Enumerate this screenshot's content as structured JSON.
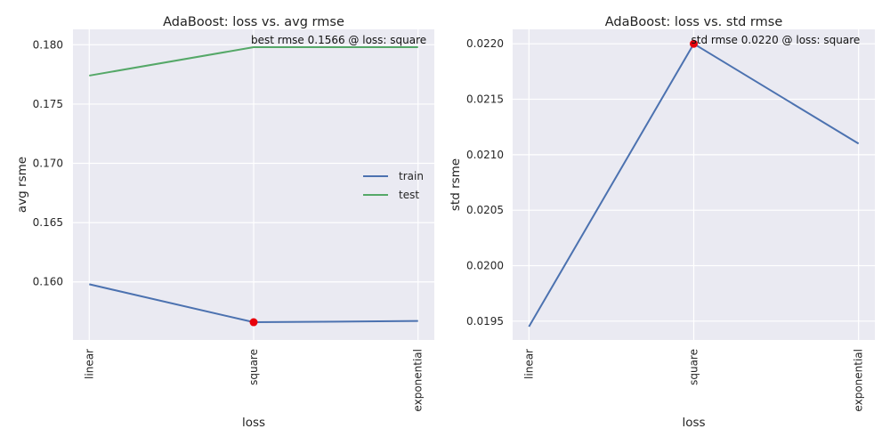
{
  "chart_data": [
    {
      "type": "line",
      "title": "AdaBoost: loss vs. avg rmse",
      "xlabel": "loss",
      "ylabel": "avg rsme",
      "categories": [
        "linear",
        "square",
        "exponential"
      ],
      "series": [
        {
          "name": "train",
          "color": "#4c72b0",
          "values": [
            0.1598,
            0.1566,
            0.1567
          ]
        },
        {
          "name": "test",
          "color": "#55a868",
          "values": [
            0.1774,
            0.1798,
            0.1798
          ]
        }
      ],
      "highlight": {
        "category": "square",
        "value": 0.1566,
        "color": "#e8000b",
        "label": "best rmse 0.1566 @ loss: square"
      },
      "ylim": [
        0.1551,
        0.1813
      ],
      "yticks": [
        0.16,
        0.165,
        0.17,
        0.175,
        0.18
      ],
      "ytick_labels": [
        "0.160",
        "0.165",
        "0.170",
        "0.175",
        "0.180"
      ],
      "legend": "center-right",
      "grid": true
    },
    {
      "type": "line",
      "title": "AdaBoost: loss vs. std rmse",
      "xlabel": "loss",
      "ylabel": "std rsme",
      "categories": [
        "linear",
        "square",
        "exponential"
      ],
      "series": [
        {
          "color": "#4c72b0",
          "values": [
            0.01945,
            0.022,
            0.0211
          ]
        }
      ],
      "highlight": {
        "category": "square",
        "value": 0.022,
        "color": "#e8000b",
        "label": "std rmse 0.0220 @ loss: square"
      },
      "ylim": [
        0.01933,
        0.02213
      ],
      "yticks": [
        0.0195,
        0.02,
        0.0205,
        0.021,
        0.0215,
        0.022
      ],
      "ytick_labels": [
        "0.0195",
        "0.0200",
        "0.0205",
        "0.0210",
        "0.0215",
        "0.0220"
      ],
      "grid": true
    }
  ]
}
